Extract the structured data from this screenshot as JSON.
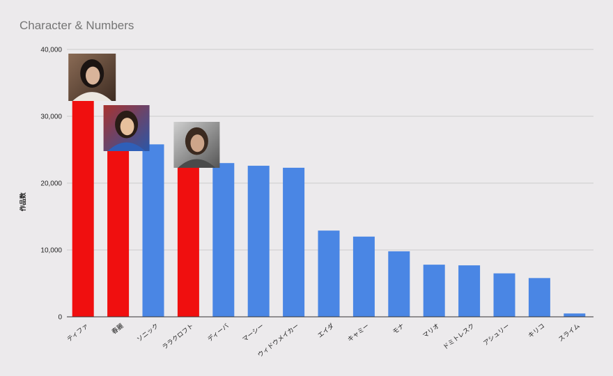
{
  "chart_data": {
    "type": "bar",
    "title": "Character & Numbers",
    "xlabel": "",
    "ylabel": "作品数",
    "ylim": [
      0,
      40000
    ],
    "yticks": [
      0,
      10000,
      20000,
      30000,
      40000
    ],
    "ytick_labels": [
      "0",
      "10,000",
      "20,000",
      "30,000",
      "40,000"
    ],
    "grid": true,
    "legend": "none",
    "categories": [
      "ティファ",
      "春麗",
      "ソニック",
      "ララクロフト",
      "ディーバ",
      "マーシー",
      "ウィドウメイカー",
      "エイダ",
      "キャミー",
      "モナ",
      "マリオ",
      "ドミトレスク",
      "アシュリー",
      "キリコ",
      "スライム"
    ],
    "values": [
      32500,
      25000,
      25800,
      22500,
      23000,
      22600,
      22300,
      12900,
      12000,
      9800,
      7800,
      7700,
      6500,
      5800,
      500
    ],
    "highlighted": [
      true,
      true,
      false,
      true,
      false,
      false,
      false,
      false,
      false,
      false,
      false,
      false,
      false,
      false,
      false
    ],
    "colors": {
      "default": "#4a86e4",
      "highlight": "#f00f0f",
      "grid": "#cccccc",
      "axis": "#333333"
    },
    "thumbnails": [
      {
        "category": "ティファ",
        "icon": "character-portrait-icon"
      },
      {
        "category": "春麗",
        "icon": "character-portrait-icon"
      },
      {
        "category": "ララクロフト",
        "icon": "character-portrait-icon"
      }
    ]
  }
}
